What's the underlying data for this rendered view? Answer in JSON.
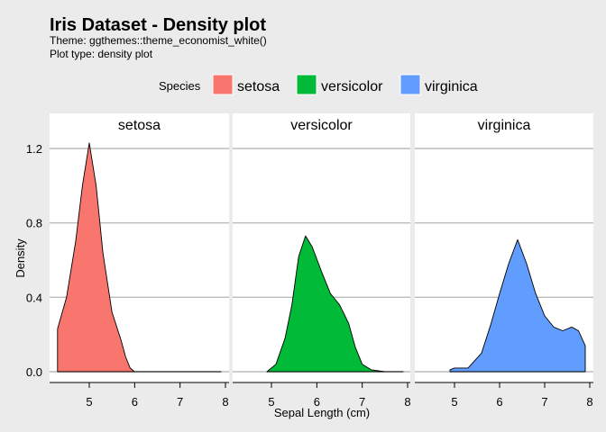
{
  "chart_data": {
    "type": "area",
    "title": "Iris Dataset - Density plot",
    "subtitle_lines": [
      "Theme: ggthemes::theme_economist_white()",
      "Plot type: density plot"
    ],
    "xlabel": "Sepal Length (cm)",
    "ylabel": "Density",
    "xlim": [
      4.2,
      8.05
    ],
    "ylim": [
      -0.05,
      1.4
    ],
    "xticks": [
      5,
      6,
      7,
      8
    ],
    "yticks": [
      0.0,
      0.4,
      0.8,
      1.2
    ],
    "ytick_labels": [
      "0.0",
      "0.4",
      "0.8",
      "1.2"
    ],
    "legend": {
      "title": "Species",
      "position": "top"
    },
    "grid": "horizontal",
    "facets": [
      "setosa",
      "versicolor",
      "virginica"
    ],
    "series": [
      {
        "name": "setosa",
        "color": "#f8766d",
        "x": [
          4.3,
          4.5,
          4.7,
          4.85,
          5.0,
          5.15,
          5.3,
          5.5,
          5.7,
          5.8,
          5.9,
          6.0,
          6.3,
          7.0,
          7.9
        ],
        "y": [
          0.23,
          0.4,
          0.7,
          1.0,
          1.23,
          1.0,
          0.64,
          0.32,
          0.17,
          0.08,
          0.02,
          0.0,
          0.0,
          0.0,
          0.0
        ]
      },
      {
        "name": "versicolor",
        "color": "#00ba38",
        "x": [
          4.9,
          5.1,
          5.3,
          5.45,
          5.6,
          5.75,
          5.9,
          6.1,
          6.3,
          6.5,
          6.7,
          6.85,
          7.0,
          7.2,
          7.5,
          7.9
        ],
        "y": [
          0.0,
          0.04,
          0.18,
          0.36,
          0.62,
          0.73,
          0.67,
          0.54,
          0.42,
          0.36,
          0.26,
          0.13,
          0.04,
          0.01,
          0.0,
          0.0
        ]
      },
      {
        "name": "virginica",
        "color": "#619cff",
        "x": [
          4.9,
          5.0,
          5.3,
          5.6,
          5.8,
          6.0,
          6.2,
          6.4,
          6.6,
          6.8,
          7.0,
          7.2,
          7.4,
          7.6,
          7.75,
          7.9
        ],
        "y": [
          0.01,
          0.02,
          0.02,
          0.1,
          0.25,
          0.42,
          0.58,
          0.71,
          0.58,
          0.42,
          0.3,
          0.24,
          0.22,
          0.24,
          0.22,
          0.14
        ]
      }
    ]
  }
}
